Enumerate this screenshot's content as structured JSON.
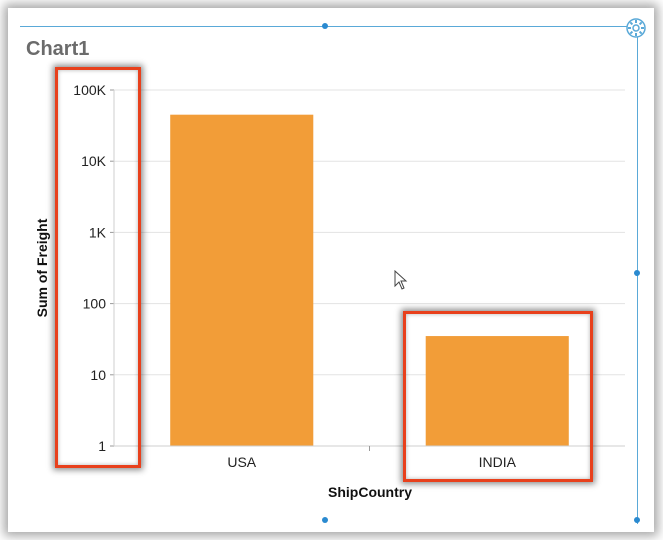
{
  "widget": {
    "title": "Chart1"
  },
  "chart_data": {
    "type": "bar",
    "xlabel": "ShipCountry",
    "ylabel": "Sum of Freight",
    "yscale": "log",
    "ylim": [
      1,
      100000
    ],
    "yticks": [
      {
        "value": 1,
        "label": "1"
      },
      {
        "value": 10,
        "label": "10"
      },
      {
        "value": 100,
        "label": "100"
      },
      {
        "value": 1000,
        "label": "1K"
      },
      {
        "value": 10000,
        "label": "10K"
      },
      {
        "value": 100000,
        "label": "100K"
      }
    ],
    "categories": [
      "USA",
      "INDIA"
    ],
    "values": [
      45000,
      35
    ],
    "bar_color": "#f29d38",
    "grid": true
  },
  "colors": {
    "highlight": "#e8401c",
    "frame": "#5aa9d8"
  },
  "icons": {
    "settings": "gear-icon",
    "cursor": "mouse-cursor-icon"
  }
}
